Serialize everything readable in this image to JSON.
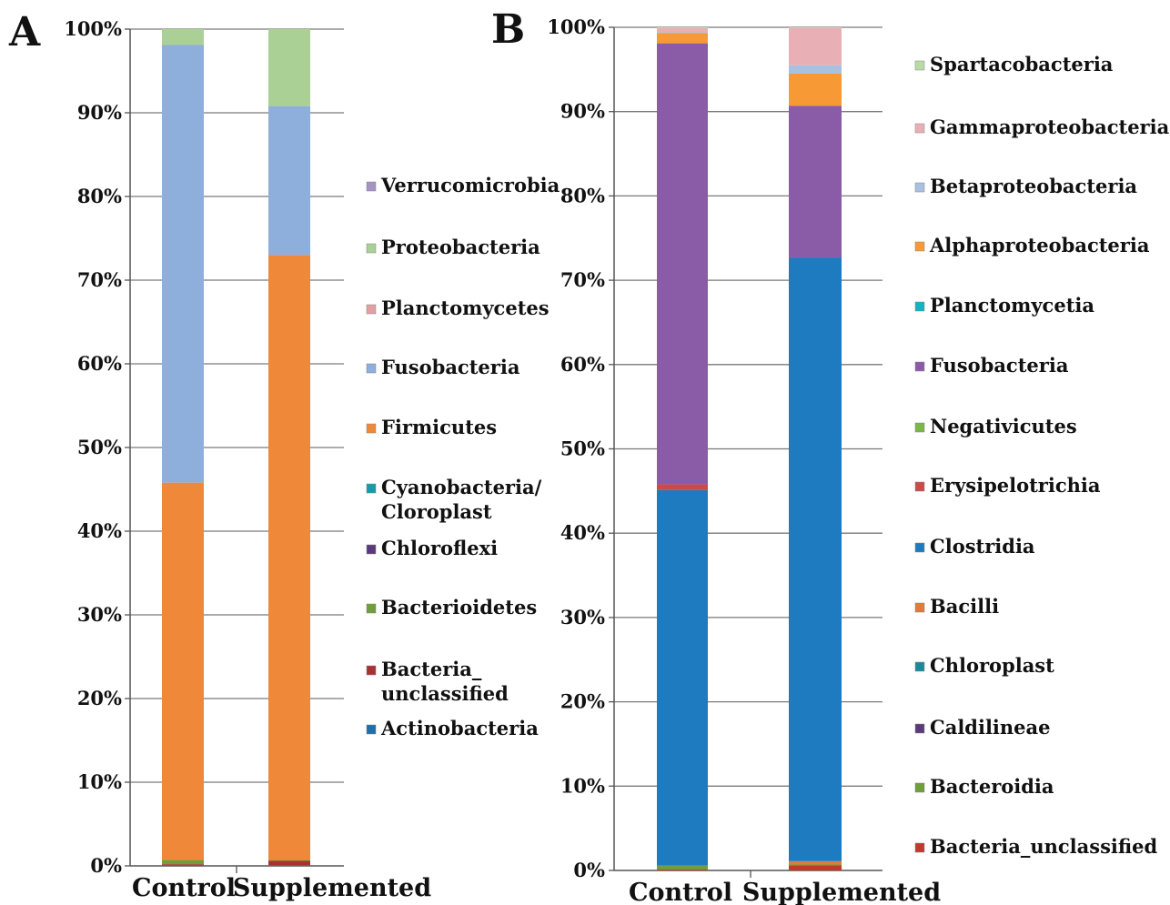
{
  "chart_data": [
    {
      "panel_label": "A",
      "type": "bar",
      "stacked": true,
      "categories": [
        "Control",
        "Supplemented"
      ],
      "ylim": [
        0,
        100
      ],
      "yticks": [
        "0%",
        "10%",
        "20%",
        "30%",
        "40%",
        "50%",
        "60%",
        "70%",
        "80%",
        "90%",
        "100%"
      ],
      "grid": true,
      "legend_position": "right",
      "series": [
        {
          "name": "Actinobacteria",
          "color": "#1f6fa8",
          "values": [
            0.1,
            0.1
          ]
        },
        {
          "name": "Bacteria_\nunclassified",
          "color": "#a83232",
          "values": [
            0.1,
            0.5
          ]
        },
        {
          "name": "Bacterioidetes",
          "color": "#6f9e3a",
          "values": [
            0.5,
            0.1
          ]
        },
        {
          "name": "Chloroflexi",
          "color": "#5b3a7a",
          "values": [
            0.0,
            0.0
          ]
        },
        {
          "name": "Cyanobacteria/\nCloroplast",
          "color": "#1a9aa8",
          "values": [
            0.0,
            0.0
          ]
        },
        {
          "name": "Firmicutes",
          "color": "#f0883a",
          "values": [
            45.1,
            72.3
          ]
        },
        {
          "name": "Fusobacteria",
          "color": "#8eaedb",
          "values": [
            52.3,
            17.8
          ]
        },
        {
          "name": "Planctomycetes",
          "color": "#e3a0a0",
          "values": [
            0.0,
            0.0
          ]
        },
        {
          "name": "Proteobacteria",
          "color": "#aad095",
          "values": [
            1.9,
            9.2
          ]
        },
        {
          "name": "Verrucomicrobia",
          "color": "#a693c2",
          "values": [
            0.0,
            0.0
          ]
        }
      ]
    },
    {
      "panel_label": "B",
      "type": "bar",
      "stacked": true,
      "categories": [
        "Control",
        "Supplemented"
      ],
      "ylim": [
        0,
        100
      ],
      "yticks": [
        "0%",
        "10%",
        "20%",
        "30%",
        "40%",
        "50%",
        "60%",
        "70%",
        "80%",
        "90%",
        "100%"
      ],
      "grid": true,
      "legend_position": "right",
      "series": [
        {
          "name": "Bacteria_unclassified",
          "color": "#c0392b",
          "values": [
            0.1,
            0.6
          ]
        },
        {
          "name": "Bacteroidia",
          "color": "#6f9e3a",
          "values": [
            0.5,
            0.1
          ]
        },
        {
          "name": "Caldilineae",
          "color": "#5b3a7a",
          "values": [
            0.0,
            0.0
          ]
        },
        {
          "name": "Chloroplast",
          "color": "#1a8a98",
          "values": [
            0.0,
            0.0
          ]
        },
        {
          "name": "Bacilli",
          "color": "#e07b39",
          "values": [
            0.0,
            0.4
          ]
        },
        {
          "name": "Clostridia",
          "color": "#1f7bbf",
          "values": [
            44.5,
            71.6
          ]
        },
        {
          "name": "Erysipelotrichia",
          "color": "#cc4a4a",
          "values": [
            0.7,
            0.0
          ]
        },
        {
          "name": "Negativicutes",
          "color": "#7ab648",
          "values": [
            0.0,
            0.0
          ]
        },
        {
          "name": "Fusobacteria",
          "color": "#8a5ca8",
          "values": [
            52.3,
            18.0
          ]
        },
        {
          "name": "Planctomycetia",
          "color": "#17b0c4",
          "values": [
            0.0,
            0.0
          ]
        },
        {
          "name": "Alphaproteobacteria",
          "color": "#f79a35",
          "values": [
            1.2,
            3.8
          ]
        },
        {
          "name": "Betaproteobacteria",
          "color": "#a8c1e0",
          "values": [
            0.1,
            1.0
          ]
        },
        {
          "name": "Gammaproteobacteria",
          "color": "#e8b0b5",
          "values": [
            0.5,
            4.4
          ]
        },
        {
          "name": "Spartacobacteria",
          "color": "#b9dba6",
          "values": [
            0.1,
            0.1
          ]
        }
      ]
    }
  ]
}
